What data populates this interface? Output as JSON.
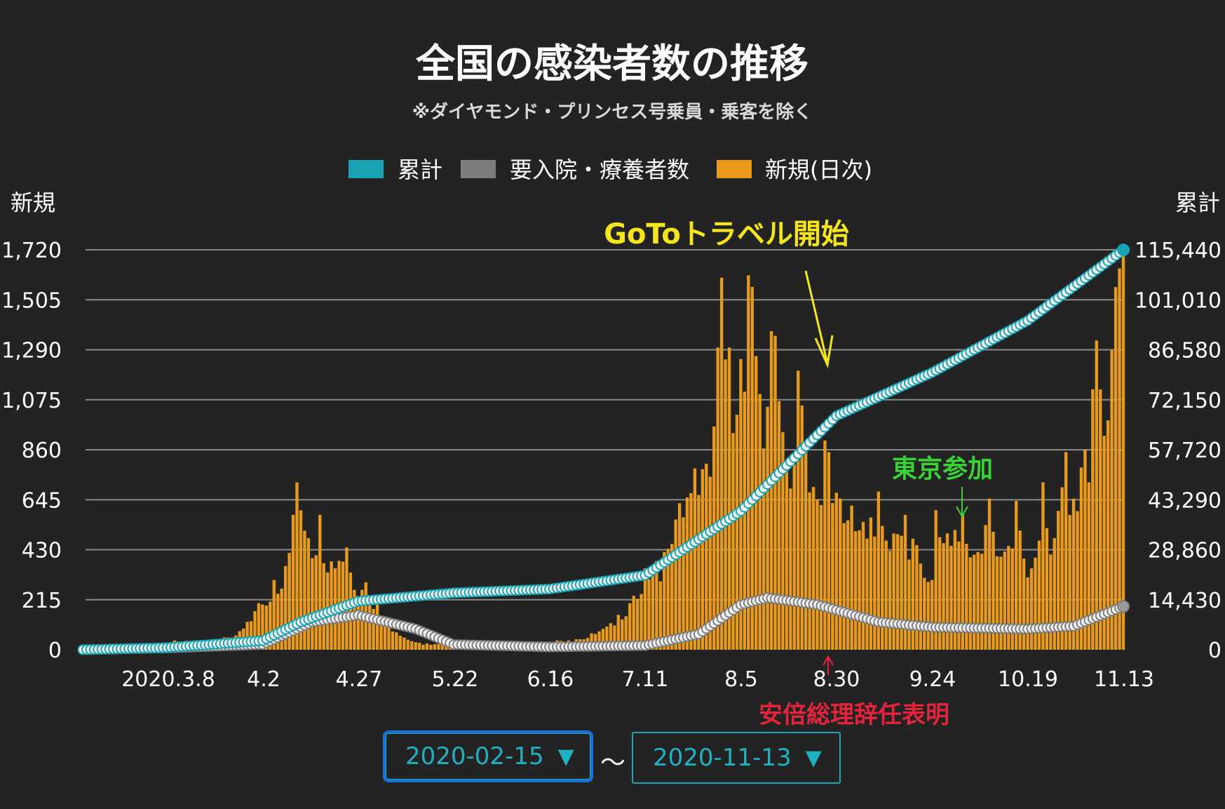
{
  "chart_data": {
    "type": "bar+line",
    "title": "全国の感染者数の推移",
    "subtitle": "※ダイヤモンド・プリンセス号乗員・乗客を除く",
    "legend": [
      {
        "label": "累計",
        "color": "#19a3b5"
      },
      {
        "label": "要入院・療養者数",
        "color": "#7d7d7d"
      },
      {
        "label": "新規(日次)",
        "color": "#e89a1a"
      }
    ],
    "left_axis": {
      "label": "新規",
      "ticks": [
        "1,720",
        "1,505",
        "1,290",
        "1,075",
        "860",
        "645",
        "430",
        "215",
        "0"
      ],
      "ylim": [
        0,
        1720
      ]
    },
    "right_axis": {
      "label": "累計",
      "ticks": [
        "115,440",
        "101,010",
        "86,580",
        "72,150",
        "57,720",
        "43,290",
        "28,860",
        "14,430",
        "0"
      ],
      "ylim": [
        0,
        115440
      ]
    },
    "x_ticks": [
      "2020.3.8",
      "4.2",
      "4.27",
      "5.22",
      "6.16",
      "7.11",
      "8.5",
      "8.30",
      "9.24",
      "10.19",
      "11.13"
    ],
    "x_range": [
      "2020-02-15",
      "2020-11-13"
    ],
    "new_daily_anchors": [
      [
        "2020-02-15",
        2
      ],
      [
        "2020-02-25",
        5
      ],
      [
        "2020-03-05",
        25
      ],
      [
        "2020-03-10",
        40
      ],
      [
        "2020-03-20",
        35
      ],
      [
        "2020-03-27",
        80
      ],
      [
        "2020-04-01",
        200
      ],
      [
        "2020-04-05",
        300
      ],
      [
        "2020-04-08",
        360
      ],
      [
        "2020-04-10",
        580
      ],
      [
        "2020-04-11",
        720
      ],
      [
        "2020-04-14",
        480
      ],
      [
        "2020-04-17",
        580
      ],
      [
        "2020-04-20",
        380
      ],
      [
        "2020-04-24",
        440
      ],
      [
        "2020-04-27",
        230
      ],
      [
        "2020-04-29",
        290
      ],
      [
        "2020-05-02",
        200
      ],
      [
        "2020-05-05",
        110
      ],
      [
        "2020-05-08",
        60
      ],
      [
        "2020-05-13",
        30
      ],
      [
        "2020-05-20",
        25
      ],
      [
        "2020-05-25",
        18
      ],
      [
        "2020-06-03",
        30
      ],
      [
        "2020-06-10",
        20
      ],
      [
        "2020-06-18",
        40
      ],
      [
        "2020-06-23",
        45
      ],
      [
        "2020-06-30",
        90
      ],
      [
        "2020-07-04",
        150
      ],
      [
        "2020-07-07",
        200
      ],
      [
        "2020-07-11",
        350
      ],
      [
        "2020-07-16",
        420
      ],
      [
        "2020-07-20",
        630
      ],
      [
        "2020-07-24",
        780
      ],
      [
        "2020-07-27",
        800
      ],
      [
        "2020-07-30",
        1300
      ],
      [
        "2020-07-31",
        1600
      ],
      [
        "2020-08-02",
        1300
      ],
      [
        "2020-08-05",
        1250
      ],
      [
        "2020-08-07",
        1610
      ],
      [
        "2020-08-08",
        1560
      ],
      [
        "2020-08-10",
        1100
      ],
      [
        "2020-08-13",
        1370
      ],
      [
        "2020-08-14",
        1350
      ],
      [
        "2020-08-17",
        800
      ],
      [
        "2020-08-20",
        1200
      ],
      [
        "2020-08-21",
        1050
      ],
      [
        "2020-08-24",
        700
      ],
      [
        "2020-08-27",
        900
      ],
      [
        "2020-08-28",
        850
      ],
      [
        "2020-08-31",
        650
      ],
      [
        "2020-09-03",
        620
      ],
      [
        "2020-09-06",
        550
      ],
      [
        "2020-09-10",
        680
      ],
      [
        "2020-09-14",
        500
      ],
      [
        "2020-09-17",
        580
      ],
      [
        "2020-09-20",
        450
      ],
      [
        "2020-09-24",
        300
      ],
      [
        "2020-09-25",
        600
      ],
      [
        "2020-09-28",
        500
      ],
      [
        "2020-10-02",
        580
      ],
      [
        "2020-10-06",
        420
      ],
      [
        "2020-10-09",
        650
      ],
      [
        "2020-10-12",
        400
      ],
      [
        "2020-10-16",
        640
      ],
      [
        "2020-10-20",
        350
      ],
      [
        "2020-10-23",
        720
      ],
      [
        "2020-10-26",
        480
      ],
      [
        "2020-10-29",
        850
      ],
      [
        "2020-10-31",
        650
      ],
      [
        "2020-11-03",
        860
      ],
      [
        "2020-11-05",
        1120
      ],
      [
        "2020-11-06",
        1330
      ],
      [
        "2020-11-08",
        920
      ],
      [
        "2020-11-10",
        1290
      ],
      [
        "2020-11-11",
        1560
      ],
      [
        "2020-11-12",
        1640
      ],
      [
        "2020-11-13",
        1720
      ]
    ],
    "cumulative_anchors": [
      [
        "2020-02-15",
        0
      ],
      [
        "2020-03-08",
        600
      ],
      [
        "2020-04-02",
        2600
      ],
      [
        "2020-04-12",
        8000
      ],
      [
        "2020-04-27",
        14000
      ],
      [
        "2020-05-22",
        16400
      ],
      [
        "2020-06-16",
        17500
      ],
      [
        "2020-07-11",
        21500
      ],
      [
        "2020-08-05",
        40000
      ],
      [
        "2020-08-30",
        67500
      ],
      [
        "2020-09-24",
        80000
      ],
      [
        "2020-10-19",
        95000
      ],
      [
        "2020-11-13",
        115400
      ]
    ],
    "hospitalized_anchors": [
      [
        "2020-02-15",
        0
      ],
      [
        "2020-03-08",
        500
      ],
      [
        "2020-04-02",
        1500
      ],
      [
        "2020-04-15",
        8000
      ],
      [
        "2020-04-27",
        10000
      ],
      [
        "2020-05-12",
        6000
      ],
      [
        "2020-05-22",
        1500
      ],
      [
        "2020-06-16",
        800
      ],
      [
        "2020-07-11",
        1200
      ],
      [
        "2020-07-25",
        4500
      ],
      [
        "2020-08-05",
        13000
      ],
      [
        "2020-08-12",
        15000
      ],
      [
        "2020-08-25",
        13000
      ],
      [
        "2020-09-10",
        8000
      ],
      [
        "2020-09-24",
        6500
      ],
      [
        "2020-10-19",
        6000
      ],
      [
        "2020-10-31",
        6800
      ],
      [
        "2020-11-13",
        12500
      ]
    ]
  },
  "annotations": {
    "goto": "GoToトラベル開始",
    "tokyo": "東京参加",
    "abe": "安倍総理辞任表明"
  },
  "controls": {
    "start_date": "2020-02-15",
    "end_date": "2020-11-13",
    "caret": "▼",
    "separator": "〜"
  }
}
